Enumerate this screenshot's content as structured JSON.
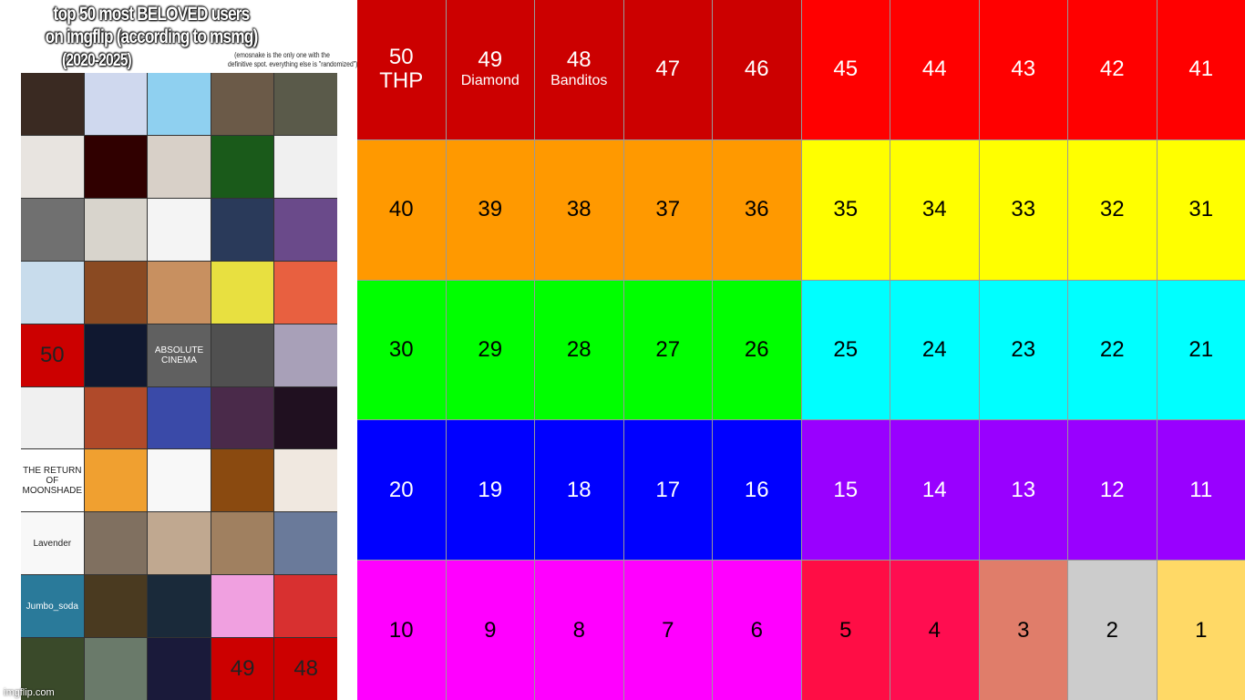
{
  "header": {
    "title_line1": "top 50 most BELOVED users",
    "title_line2": "on imgflip (according to msmg)",
    "title_line3": "(2020-2025)",
    "note_line1": "(emosnake is the only one with the",
    "note_line2": "definitive spot. everything else is \"randomized\")"
  },
  "watermark": "imgflip.com",
  "thumbnails": [
    {
      "color": "#3a2a22",
      "label": ""
    },
    {
      "color": "#cfd8ee",
      "label": ""
    },
    {
      "color": "#8fd0f0",
      "label": ""
    },
    {
      "color": "#6b5a48",
      "label": ""
    },
    {
      "color": "#5a5a4a",
      "label": ""
    },
    {
      "color": "#e8e4e0",
      "label": ""
    },
    {
      "color": "#300000",
      "label": ""
    },
    {
      "color": "#d8d0c8",
      "label": ""
    },
    {
      "color": "#1a5a1a",
      "label": ""
    },
    {
      "color": "#f0f0f0",
      "label": ""
    },
    {
      "color": "#707070",
      "label": ""
    },
    {
      "color": "#d8d4cc",
      "label": ""
    },
    {
      "color": "#f4f4f4",
      "label": ""
    },
    {
      "color": "#2a3a5a",
      "label": ""
    },
    {
      "color": "#6a4a8a",
      "label": ""
    },
    {
      "color": "#c8dcec",
      "label": ""
    },
    {
      "color": "#8a4a22",
      "label": ""
    },
    {
      "color": "#c89060",
      "label": ""
    },
    {
      "color": "#e8e040",
      "label": ""
    },
    {
      "color": "#e86040",
      "label": ""
    },
    {
      "color": "#cc0000",
      "label": "50"
    },
    {
      "color": "#101830",
      "label": ""
    },
    {
      "color": "#606060",
      "label": "ABSOLUTE CINEMA"
    },
    {
      "color": "#505050",
      "label": ""
    },
    {
      "color": "#a8a0b8",
      "label": ""
    },
    {
      "color": "#f0f0f0",
      "label": ""
    },
    {
      "color": "#b04a2a",
      "label": ""
    },
    {
      "color": "#3a4aa8",
      "label": ""
    },
    {
      "color": "#4a2a4a",
      "label": ""
    },
    {
      "color": "#201020",
      "label": ""
    },
    {
      "color": "#ffffff",
      "label": "THE RETURN OF MOONSHADE"
    },
    {
      "color": "#f0a030",
      "label": ""
    },
    {
      "color": "#f8f8f8",
      "label": ""
    },
    {
      "color": "#8a4a10",
      "label": ""
    },
    {
      "color": "#f0e8e0",
      "label": ""
    },
    {
      "color": "#f8f8f8",
      "label": "Lavender"
    },
    {
      "color": "#807060",
      "label": ""
    },
    {
      "color": "#c0a890",
      "label": ""
    },
    {
      "color": "#a08060",
      "label": ""
    },
    {
      "color": "#6a7a9a",
      "label": ""
    },
    {
      "color": "#2a7a9a",
      "label": "Jumbo_soda"
    },
    {
      "color": "#4a3a20",
      "label": ""
    },
    {
      "color": "#1a2a3a",
      "label": ""
    },
    {
      "color": "#f0a0e0",
      "label": ""
    },
    {
      "color": "#d83030",
      "label": ""
    },
    {
      "color": "#3a4a2a",
      "label": ""
    },
    {
      "color": "#6a7a6a",
      "label": ""
    },
    {
      "color": "#1a1a3a",
      "label": ""
    },
    {
      "color": "#cc0000",
      "label": "49"
    },
    {
      "color": "#cc0000",
      "label": "48"
    }
  ],
  "tiers": [
    {
      "rank": "50",
      "sub": "THP",
      "bg": "#cc0000",
      "fg": "#ffffff"
    },
    {
      "rank": "49",
      "sub": "Diamond",
      "bg": "#cc0000",
      "fg": "#ffffff"
    },
    {
      "rank": "48",
      "sub": "Banditos",
      "bg": "#cc0000",
      "fg": "#ffffff"
    },
    {
      "rank": "47",
      "sub": "",
      "bg": "#cc0000",
      "fg": "#ffffff"
    },
    {
      "rank": "46",
      "sub": "",
      "bg": "#cc0000",
      "fg": "#ffffff"
    },
    {
      "rank": "45",
      "sub": "",
      "bg": "#ff0000",
      "fg": "#ffffff"
    },
    {
      "rank": "44",
      "sub": "",
      "bg": "#ff0000",
      "fg": "#ffffff"
    },
    {
      "rank": "43",
      "sub": "",
      "bg": "#ff0000",
      "fg": "#ffffff"
    },
    {
      "rank": "42",
      "sub": "",
      "bg": "#ff0000",
      "fg": "#ffffff"
    },
    {
      "rank": "41",
      "sub": "",
      "bg": "#ff0000",
      "fg": "#ffffff"
    },
    {
      "rank": "40",
      "sub": "",
      "bg": "#ff9900",
      "fg": "#000000"
    },
    {
      "rank": "39",
      "sub": "",
      "bg": "#ff9900",
      "fg": "#000000"
    },
    {
      "rank": "38",
      "sub": "",
      "bg": "#ff9900",
      "fg": "#000000"
    },
    {
      "rank": "37",
      "sub": "",
      "bg": "#ff9900",
      "fg": "#000000"
    },
    {
      "rank": "36",
      "sub": "",
      "bg": "#ff9900",
      "fg": "#000000"
    },
    {
      "rank": "35",
      "sub": "",
      "bg": "#ffff00",
      "fg": "#000000"
    },
    {
      "rank": "34",
      "sub": "",
      "bg": "#ffff00",
      "fg": "#000000"
    },
    {
      "rank": "33",
      "sub": "",
      "bg": "#ffff00",
      "fg": "#000000"
    },
    {
      "rank": "32",
      "sub": "",
      "bg": "#ffff00",
      "fg": "#000000"
    },
    {
      "rank": "31",
      "sub": "",
      "bg": "#ffff00",
      "fg": "#000000"
    },
    {
      "rank": "30",
      "sub": "",
      "bg": "#00ff00",
      "fg": "#000000"
    },
    {
      "rank": "29",
      "sub": "",
      "bg": "#00ff00",
      "fg": "#000000"
    },
    {
      "rank": "28",
      "sub": "",
      "bg": "#00ff00",
      "fg": "#000000"
    },
    {
      "rank": "27",
      "sub": "",
      "bg": "#00ff00",
      "fg": "#000000"
    },
    {
      "rank": "26",
      "sub": "",
      "bg": "#00ff00",
      "fg": "#000000"
    },
    {
      "rank": "25",
      "sub": "",
      "bg": "#00ffff",
      "fg": "#000000"
    },
    {
      "rank": "24",
      "sub": "",
      "bg": "#00ffff",
      "fg": "#000000"
    },
    {
      "rank": "23",
      "sub": "",
      "bg": "#00ffff",
      "fg": "#000000"
    },
    {
      "rank": "22",
      "sub": "",
      "bg": "#00ffff",
      "fg": "#000000"
    },
    {
      "rank": "21",
      "sub": "",
      "bg": "#00ffff",
      "fg": "#000000"
    },
    {
      "rank": "20",
      "sub": "",
      "bg": "#0000ff",
      "fg": "#ffffff"
    },
    {
      "rank": "19",
      "sub": "",
      "bg": "#0000ff",
      "fg": "#ffffff"
    },
    {
      "rank": "18",
      "sub": "",
      "bg": "#0000ff",
      "fg": "#ffffff"
    },
    {
      "rank": "17",
      "sub": "",
      "bg": "#0000ff",
      "fg": "#ffffff"
    },
    {
      "rank": "16",
      "sub": "",
      "bg": "#0000ff",
      "fg": "#ffffff"
    },
    {
      "rank": "15",
      "sub": "",
      "bg": "#9900ff",
      "fg": "#ffffff"
    },
    {
      "rank": "14",
      "sub": "",
      "bg": "#9900ff",
      "fg": "#ffffff"
    },
    {
      "rank": "13",
      "sub": "",
      "bg": "#9900ff",
      "fg": "#ffffff"
    },
    {
      "rank": "12",
      "sub": "",
      "bg": "#9900ff",
      "fg": "#ffffff"
    },
    {
      "rank": "11",
      "sub": "",
      "bg": "#9900ff",
      "fg": "#ffffff"
    },
    {
      "rank": "10",
      "sub": "",
      "bg": "#ff00ff",
      "fg": "#000000"
    },
    {
      "rank": "9",
      "sub": "",
      "bg": "#ff00ff",
      "fg": "#000000"
    },
    {
      "rank": "8",
      "sub": "",
      "bg": "#ff00ff",
      "fg": "#000000"
    },
    {
      "rank": "7",
      "sub": "",
      "bg": "#ff00ff",
      "fg": "#000000"
    },
    {
      "rank": "6",
      "sub": "",
      "bg": "#ff00ff",
      "fg": "#000000"
    },
    {
      "rank": "5",
      "sub": "",
      "bg": "#ff0d45",
      "fg": "#000000"
    },
    {
      "rank": "4",
      "sub": "",
      "bg": "#ff0d50",
      "fg": "#000000"
    },
    {
      "rank": "3",
      "sub": "",
      "bg": "#e07d6a",
      "fg": "#000000"
    },
    {
      "rank": "2",
      "sub": "",
      "bg": "#cccccc",
      "fg": "#000000"
    },
    {
      "rank": "1",
      "sub": "",
      "bg": "#ffd966",
      "fg": "#000000"
    }
  ]
}
